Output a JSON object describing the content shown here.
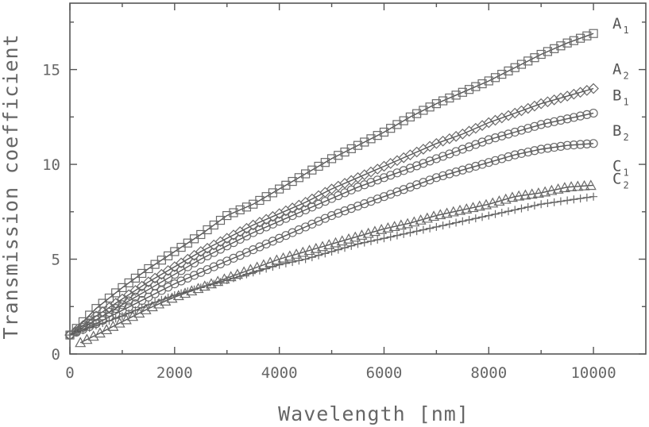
{
  "chart_data": {
    "type": "scatter",
    "xlabel": "Wavelength [nm]",
    "ylabel": "Transmission coefficient",
    "xlim": [
      0,
      11000
    ],
    "ylim": [
      0,
      18.5
    ],
    "xticks": [
      "0",
      "2000",
      "4000",
      "6000",
      "8000",
      "10000"
    ],
    "xtick_values": [
      0,
      2000,
      4000,
      6000,
      8000,
      10000
    ],
    "yticks": [
      "0",
      "5",
      "10",
      "15"
    ],
    "ytick_values": [
      0,
      5,
      10,
      15
    ],
    "grid": false,
    "series": [
      {
        "name": "A1",
        "label_main": "A",
        "label_sub": "1",
        "marker": "square",
        "x": [
          0,
          500,
          1000,
          1500,
          2000,
          2500,
          3000,
          3500,
          4000,
          4500,
          5000,
          5500,
          6000,
          6500,
          7000,
          7500,
          8000,
          8500,
          9000,
          9500,
          10000
        ],
        "y": [
          1.0,
          2.4,
          3.5,
          4.5,
          5.4,
          6.3,
          7.3,
          7.9,
          8.7,
          9.5,
          10.3,
          11.0,
          11.7,
          12.5,
          13.2,
          13.8,
          14.4,
          15.1,
          15.8,
          16.4,
          16.9
        ]
      },
      {
        "name": "A2",
        "label_main": "A",
        "label_sub": "2",
        "marker": "diamond",
        "x": [
          0,
          500,
          1000,
          1500,
          2000,
          2500,
          3000,
          3500,
          4000,
          4500,
          5000,
          5500,
          6000,
          6500,
          7000,
          7500,
          8000,
          8500,
          9000,
          9500,
          10000
        ],
        "y": [
          1.0,
          2.0,
          2.9,
          3.8,
          4.6,
          5.4,
          6.1,
          6.8,
          7.4,
          8.0,
          8.7,
          9.3,
          9.9,
          10.5,
          11.1,
          11.6,
          12.2,
          12.7,
          13.2,
          13.6,
          14.0
        ]
      },
      {
        "name": "B1",
        "label_main": "B",
        "label_sub": "1",
        "marker": "circle",
        "x": [
          0,
          500,
          1000,
          1500,
          2000,
          2500,
          3000,
          3500,
          4000,
          4500,
          5000,
          5500,
          6000,
          6500,
          7000,
          7500,
          8000,
          8500,
          9000,
          9500,
          10000
        ],
        "y": [
          1.0,
          1.8,
          2.6,
          3.4,
          4.2,
          5.0,
          5.7,
          6.4,
          7.0,
          7.6,
          8.2,
          8.8,
          9.3,
          9.8,
          10.3,
          10.8,
          11.3,
          11.7,
          12.1,
          12.4,
          12.7
        ]
      },
      {
        "name": "B2",
        "label_main": "B",
        "label_sub": "2",
        "marker": "circle",
        "x": [
          0,
          500,
          1000,
          1500,
          2000,
          2500,
          3000,
          3500,
          4000,
          4500,
          5000,
          5500,
          6000,
          6500,
          7000,
          7500,
          8000,
          8500,
          9000,
          9500,
          10000
        ],
        "y": [
          1.0,
          1.6,
          2.3,
          3.0,
          3.7,
          4.3,
          4.9,
          5.5,
          6.1,
          6.7,
          7.3,
          7.8,
          8.3,
          8.8,
          9.3,
          9.7,
          10.1,
          10.5,
          10.8,
          11.0,
          11.1
        ]
      },
      {
        "name": "C1",
        "label_main": "C",
        "label_sub": "1",
        "marker": "triangle",
        "x": [
          200,
          500,
          1000,
          1500,
          2000,
          2500,
          3000,
          3500,
          4000,
          4500,
          5000,
          5500,
          6000,
          6500,
          7000,
          7500,
          8000,
          8500,
          9000,
          9500,
          10000
        ],
        "y": [
          0.6,
          1.0,
          1.7,
          2.4,
          3.0,
          3.5,
          4.0,
          4.5,
          5.0,
          5.4,
          5.8,
          6.2,
          6.6,
          6.9,
          7.3,
          7.6,
          7.9,
          8.3,
          8.5,
          8.8,
          8.9
        ]
      },
      {
        "name": "C2",
        "label_main": "C",
        "label_sub": "2",
        "marker": "plus",
        "x": [
          0,
          500,
          1000,
          1500,
          2000,
          2500,
          3000,
          3500,
          4000,
          4500,
          5000,
          5500,
          6000,
          6500,
          7000,
          7500,
          8000,
          8500,
          9000,
          9500,
          10000
        ],
        "y": [
          1.0,
          1.5,
          2.0,
          2.6,
          3.1,
          3.5,
          3.9,
          4.3,
          4.7,
          5.0,
          5.4,
          5.8,
          6.1,
          6.4,
          6.7,
          7.0,
          7.3,
          7.6,
          7.9,
          8.1,
          8.3
        ]
      }
    ]
  }
}
